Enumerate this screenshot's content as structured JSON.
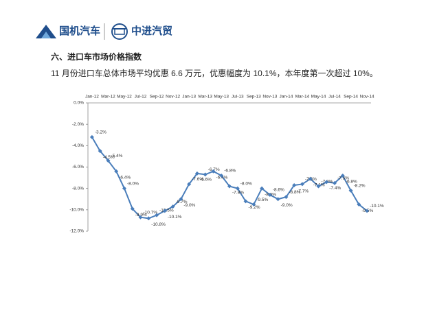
{
  "header": {
    "logo_left": "国机汽车",
    "logo_right": "中进汽贸",
    "section_title": "六、进口车市场价格指数",
    "subtitle": "11 月份进口车总体市场平均优惠 6.6 万元，优惠幅度为 10.1%，本年度第一次超过 10%。"
  },
  "chart_data": {
    "type": "line",
    "categories": [
      "Jan-12",
      null,
      "Mar-12",
      null,
      "May-12",
      null,
      "Jul-12",
      null,
      "Sep-12",
      null,
      "Nov-12",
      null,
      "Jan-13",
      null,
      "Mar-13",
      null,
      "May-13",
      null,
      "Jul-13",
      null,
      "Sep-13",
      null,
      "Nov-13",
      null,
      "Jan-14",
      null,
      "Mar-14",
      null,
      "May-14",
      null,
      "Jul-14",
      null,
      "Sep-14",
      null,
      "Nov-14"
    ],
    "values": [
      -3.2,
      -4.5,
      -5.4,
      -6.4,
      -8.0,
      -9.9,
      -10.7,
      -10.8,
      -10.5,
      -10.1,
      -9.7,
      -9.0,
      -7.6,
      -6.6,
      -6.7,
      -6.4,
      -6.8,
      -7.8,
      -8.0,
      -9.2,
      -9.5,
      -8.0,
      -8.6,
      -9.0,
      -8.8,
      -7.7,
      -7.6,
      -7.1,
      -7.8,
      -7.4,
      -7.5,
      -6.8,
      -8.2,
      -9.5,
      -10.1
    ],
    "value_labels": [
      "-3.2%",
      "-4.5%",
      "-5.4%",
      "-6.4%",
      "-8.0%",
      "-9.9%",
      "-10.7%",
      "-10.8%",
      "-10.5%",
      "-10.1%",
      "-9.7%",
      "-9.0%",
      "-7.6%",
      "-6.6%",
      "-6.7%",
      "-6.4%",
      "-6.8%",
      "-7.8%",
      "-8.0%",
      "-9.2%",
      "-9.5%",
      "-8.0%",
      "-8.6%",
      "-9.0%",
      "-8.8%",
      "-7.7%",
      "-7.6%",
      "-7.1%",
      "-7.8%",
      "-7.4%",
      "-7.5%",
      "-6.8%",
      "-8.2%",
      "-9.5%",
      "-10.1%"
    ],
    "color": "#4a7ebb",
    "ylim": [
      -12,
      0
    ],
    "yticks": [
      {
        "value": 0,
        "label": "0.0%"
      },
      {
        "value": -2,
        "label": "-2.0%"
      },
      {
        "value": -4,
        "label": "-4.0%"
      },
      {
        "value": -6,
        "label": "-6.0%"
      },
      {
        "value": -8,
        "label": "-8.0%"
      },
      {
        "value": -10,
        "label": "-10.0%"
      },
      {
        "value": -12,
        "label": "-12.0%"
      }
    ]
  }
}
